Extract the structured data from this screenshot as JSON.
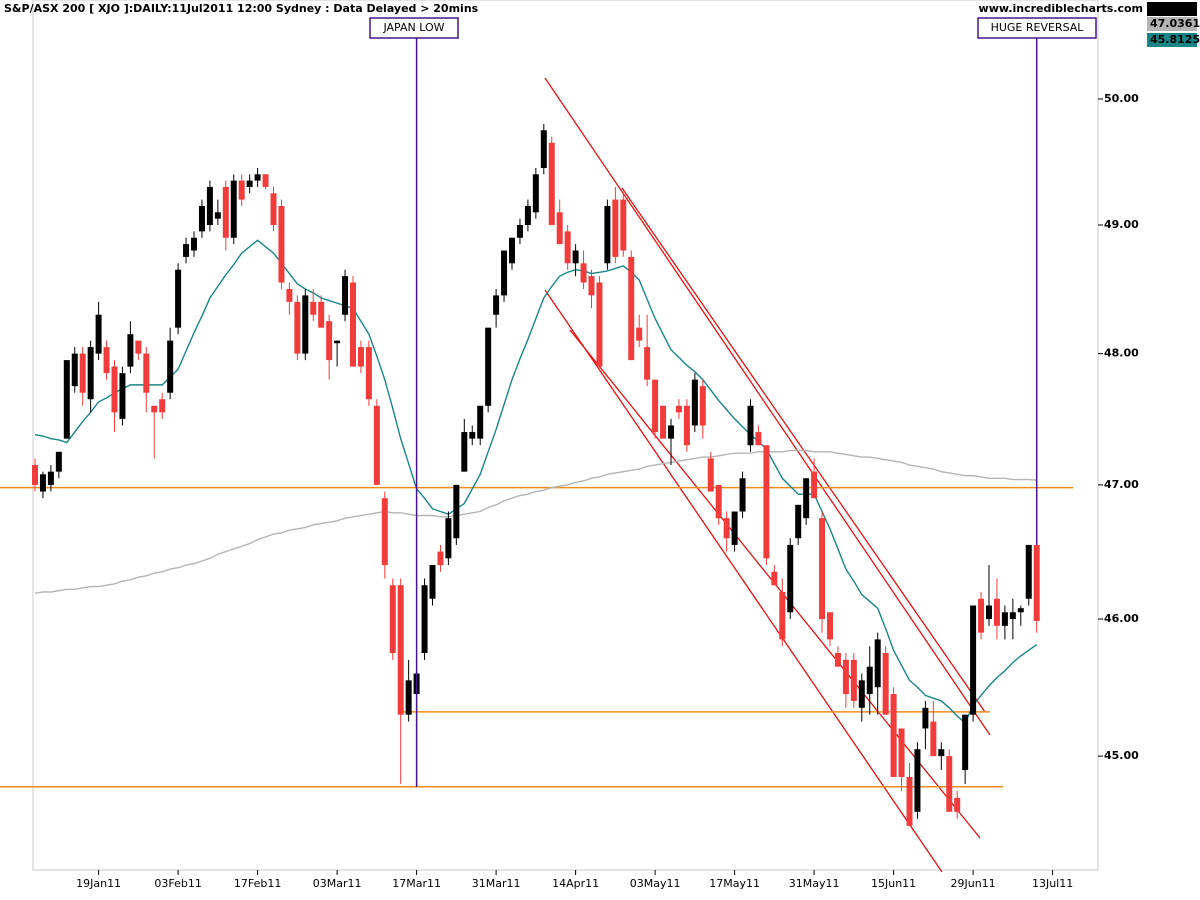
{
  "chart_data": {
    "type": "candlestick",
    "title": "S&P/ASX 200 [ XJO ]:DAILY:11Jul2011 12:00 Sydney : Data Delayed > 20mins",
    "source": "www.incrediblecharts.com",
    "categories": [
      null,
      null,
      null,
      null,
      null,
      null,
      null,
      null,
      "19Jan11",
      null,
      null,
      null,
      null,
      null,
      null,
      null,
      null,
      null,
      "03Feb11",
      null,
      null,
      null,
      null,
      null,
      null,
      null,
      null,
      null,
      "17Feb11",
      null,
      null,
      null,
      null,
      null,
      null,
      null,
      null,
      null,
      "03Mar11",
      null,
      null,
      null,
      null,
      null,
      null,
      null,
      null,
      null,
      "17Mar11",
      null,
      null,
      null,
      null,
      null,
      null,
      null,
      null,
      null,
      "31Mar11",
      null,
      null,
      null,
      null,
      null,
      null,
      null,
      null,
      null,
      "14Apr11",
      null,
      null,
      null,
      null,
      null,
      null,
      null,
      null,
      null,
      "03May11",
      null,
      null,
      null,
      null,
      null,
      null,
      null,
      null,
      null,
      "17May11",
      null,
      null,
      null,
      null,
      null,
      null,
      null,
      null,
      null,
      "31May11",
      null,
      null,
      null,
      null,
      null,
      null,
      null,
      null,
      null,
      "15Jun11",
      null,
      null,
      null,
      null,
      null,
      null,
      null,
      null,
      null,
      "29Jun11",
      null,
      null,
      null,
      null,
      null,
      null,
      null,
      null,
      null,
      "13Jul11"
    ],
    "open": [
      47.15,
      46.95,
      47.0,
      47.1,
      47.35,
      47.75,
      48.0,
      47.65,
      48.0,
      48.05,
      47.9,
      47.5,
      47.9,
      48.1,
      48.0,
      47.6,
      47.65,
      47.7,
      48.2,
      48.75,
      48.8,
      48.95,
      49.0,
      49.05,
      49.3,
      48.9,
      49.35,
      49.3,
      49.35,
      49.4,
      49.25,
      49.15,
      48.5,
      48.4,
      48.0,
      48.4,
      48.4,
      48.25,
      48.08,
      48.3,
      48.55,
      48.05,
      48.05,
      47.6,
      46.9,
      46.25,
      46.25,
      45.3,
      45.45,
      45.75,
      46.15,
      46.5,
      46.45,
      46.6,
      47.1,
      47.35,
      47.35,
      47.6,
      48.3,
      48.45,
      48.7,
      48.9,
      49.0,
      49.1,
      49.45,
      49.65,
      49.1,
      48.95,
      48.7,
      48.7,
      48.6,
      48.55,
      48.7,
      49.2,
      49.2,
      48.75,
      48.2,
      48.05,
      47.8,
      47.6,
      47.35,
      47.6,
      47.6,
      47.45,
      47.75,
      47.2,
      47.0,
      46.75,
      46.55,
      46.8,
      47.3,
      47.4,
      47.3,
      46.35,
      46.2,
      46.05,
      46.6,
      46.75,
      47.1,
      46.75,
      46.05,
      45.75,
      45.7,
      45.7,
      45.35,
      45.45,
      45.5,
      45.75,
      45.45,
      45.2,
      44.85,
      44.6,
      45.2,
      45.25,
      45.0,
      45.0,
      44.7,
      44.9,
      45.3,
      46.15,
      46.0,
      46.15,
      45.95,
      46.0,
      46.05,
      46.15,
      46.55,
      null,
      null
    ],
    "high": [
      47.2,
      47.1,
      47.15,
      47.25,
      47.95,
      48.05,
      48.05,
      48.1,
      48.4,
      48.1,
      47.95,
      47.9,
      48.25,
      48.1,
      48.05,
      47.6,
      47.7,
      48.2,
      48.7,
      48.9,
      48.95,
      49.2,
      49.35,
      49.2,
      49.35,
      49.4,
      49.4,
      49.4,
      49.45,
      49.4,
      49.3,
      49.2,
      48.55,
      48.45,
      48.5,
      48.5,
      48.45,
      48.3,
      48.1,
      48.65,
      48.6,
      48.1,
      48.1,
      47.65,
      46.95,
      46.3,
      46.3,
      45.7,
      45.6,
      46.3,
      46.4,
      46.55,
      46.8,
      47.0,
      47.5,
      47.45,
      47.6,
      48.2,
      48.5,
      48.8,
      48.9,
      49.05,
      49.2,
      49.45,
      49.8,
      49.7,
      49.2,
      49.0,
      48.85,
      48.8,
      48.65,
      48.6,
      49.2,
      49.3,
      49.25,
      48.8,
      48.3,
      48.3,
      47.8,
      47.6,
      47.5,
      47.65,
      47.65,
      47.85,
      47.8,
      47.25,
      47.0,
      46.8,
      46.8,
      47.1,
      47.65,
      47.45,
      47.3,
      46.4,
      46.3,
      46.6,
      46.85,
      47.05,
      47.2,
      46.8,
      46.05,
      45.8,
      45.75,
      45.75,
      45.6,
      45.8,
      45.9,
      45.8,
      45.5,
      45.2,
      44.95,
      45.1,
      45.4,
      45.4,
      45.1,
      45.05,
      44.75,
      45.3,
      46.1,
      46.2,
      46.4,
      46.3,
      46.1,
      46.15,
      46.1,
      46.55,
      46.55,
      null,
      null
    ],
    "low": [
      46.95,
      46.9,
      46.95,
      47.05,
      47.35,
      47.7,
      47.6,
      47.55,
      47.95,
      47.8,
      47.4,
      47.45,
      47.85,
      47.95,
      47.55,
      47.2,
      47.5,
      47.65,
      48.15,
      48.7,
      48.75,
      48.9,
      48.95,
      49.0,
      48.8,
      48.85,
      49.15,
      49.25,
      49.3,
      49.28,
      48.95,
      48.5,
      48.3,
      47.95,
      47.95,
      48.25,
      48.2,
      47.8,
      47.9,
      48.25,
      47.9,
      47.85,
      47.6,
      47.0,
      46.3,
      45.7,
      44.8,
      45.25,
      44.78,
      45.7,
      46.1,
      46.35,
      46.4,
      46.55,
      47.1,
      47.3,
      47.3,
      47.55,
      48.2,
      48.4,
      48.65,
      48.85,
      48.95,
      49.05,
      49.4,
      49.0,
      48.85,
      48.65,
      48.6,
      48.5,
      48.35,
      47.9,
      48.65,
      48.7,
      48.75,
      47.95,
      48.05,
      47.75,
      47.35,
      47.35,
      47.15,
      47.5,
      47.25,
      47.4,
      47.35,
      46.95,
      46.7,
      46.5,
      46.5,
      46.75,
      47.25,
      47.3,
      46.4,
      46.25,
      45.8,
      46.0,
      46.55,
      46.7,
      46.9,
      45.9,
      45.8,
      45.65,
      45.35,
      45.35,
      45.25,
      45.3,
      45.3,
      45.3,
      44.85,
      44.75,
      44.5,
      44.55,
      45.05,
      45.0,
      44.9,
      44.6,
      44.55,
      44.8,
      45.25,
      45.85,
      45.95,
      45.85,
      45.85,
      45.85,
      45.95,
      46.1,
      45.9,
      null,
      null
    ],
    "close": [
      47.0,
      47.08,
      47.1,
      47.25,
      47.95,
      48.0,
      47.7,
      48.05,
      48.3,
      47.85,
      47.55,
      47.85,
      48.15,
      48.0,
      47.7,
      47.55,
      47.55,
      48.1,
      48.65,
      48.85,
      48.9,
      49.15,
      49.3,
      49.1,
      48.9,
      49.35,
      49.2,
      49.35,
      49.4,
      49.3,
      49.0,
      48.55,
      48.4,
      48.0,
      48.45,
      48.3,
      48.2,
      47.95,
      48.1,
      48.6,
      47.9,
      47.9,
      47.65,
      47.0,
      46.4,
      45.75,
      45.3,
      45.55,
      45.6,
      46.25,
      46.4,
      46.4,
      46.75,
      47.0,
      47.4,
      47.4,
      47.6,
      48.2,
      48.45,
      48.8,
      48.9,
      49.0,
      49.15,
      49.4,
      49.75,
      49.0,
      48.85,
      48.7,
      48.8,
      48.55,
      48.45,
      47.9,
      49.15,
      48.75,
      48.8,
      47.95,
      48.1,
      47.8,
      47.4,
      47.35,
      47.45,
      47.55,
      47.3,
      47.8,
      47.45,
      46.95,
      46.75,
      46.6,
      46.8,
      47.05,
      47.6,
      47.3,
      46.45,
      46.25,
      45.85,
      46.55,
      46.85,
      47.05,
      46.9,
      46.0,
      45.85,
      45.65,
      45.45,
      45.4,
      45.55,
      45.65,
      45.85,
      45.3,
      44.85,
      44.85,
      44.5,
      45.05,
      45.35,
      45.0,
      45.05,
      44.6,
      44.6,
      45.3,
      46.1,
      45.9,
      46.1,
      45.95,
      46.05,
      46.05,
      46.08,
      46.55,
      45.986,
      null,
      null
    ],
    "up_color": "#000000",
    "down_color": "#f23c3c",
    "lines": [
      {
        "color": "#1a8585",
        "values": [
          47.38,
          47.37,
          47.35,
          47.34,
          47.32,
          47.4,
          47.48,
          47.55,
          47.63,
          47.66,
          47.7,
          47.73,
          47.76,
          47.76,
          47.76,
          47.76,
          47.76,
          47.82,
          47.88,
          48.02,
          48.16,
          48.29,
          48.43,
          48.52,
          48.61,
          48.69,
          48.78,
          48.83,
          48.88,
          48.83,
          48.78,
          48.7,
          48.62,
          48.54,
          48.5,
          48.47,
          48.43,
          48.41,
          48.39,
          48.37,
          48.35,
          48.25,
          48.15,
          47.98,
          47.8,
          47.58,
          47.35,
          47.16,
          46.97,
          46.9,
          46.82,
          46.8,
          46.78,
          46.82,
          46.86,
          46.97,
          47.08,
          47.25,
          47.42,
          47.61,
          47.8,
          47.96,
          48.11,
          48.27,
          48.43,
          48.52,
          48.6,
          48.63,
          48.65,
          48.64,
          48.62,
          48.63,
          48.64,
          48.66,
          48.68,
          48.63,
          48.57,
          48.42,
          48.27,
          48.15,
          48.03,
          47.97,
          47.91,
          47.86,
          47.8,
          47.72,
          47.64,
          47.57,
          47.5,
          47.44,
          47.38,
          47.33,
          47.27,
          47.16,
          47.05,
          46.99,
          46.93,
          46.93,
          46.93,
          46.8,
          46.67,
          46.52,
          46.37,
          46.28,
          46.18,
          46.13,
          46.08,
          45.93,
          45.77,
          45.66,
          45.55,
          45.5,
          45.44,
          45.42,
          45.4,
          45.35,
          45.29,
          45.24,
          45.37,
          45.44,
          45.51,
          45.57,
          45.62,
          45.68,
          45.73,
          45.77,
          45.8125,
          null,
          null
        ]
      },
      {
        "color": "#b4b4b4",
        "values": [
          46.19,
          46.2,
          46.2,
          46.21,
          46.22,
          46.22,
          46.23,
          46.24,
          46.24,
          46.25,
          46.26,
          46.28,
          46.29,
          46.31,
          46.32,
          46.34,
          46.35,
          46.37,
          46.38,
          46.4,
          46.41,
          46.43,
          46.45,
          46.48,
          46.5,
          46.52,
          46.54,
          46.56,
          46.59,
          46.61,
          46.63,
          46.64,
          46.66,
          46.67,
          46.68,
          46.7,
          46.71,
          46.72,
          46.73,
          46.75,
          46.76,
          46.77,
          46.78,
          46.79,
          46.8,
          46.79,
          46.79,
          46.78,
          46.77,
          46.77,
          46.77,
          46.76,
          46.76,
          46.77,
          46.78,
          46.79,
          46.8,
          46.83,
          46.85,
          46.88,
          46.9,
          46.92,
          46.93,
          46.95,
          46.96,
          46.98,
          46.99,
          47.0,
          47.02,
          47.03,
          47.05,
          47.06,
          47.08,
          47.09,
          47.1,
          47.11,
          47.12,
          47.14,
          47.15,
          47.16,
          47.17,
          47.18,
          47.19,
          47.2,
          47.21,
          47.21,
          47.22,
          47.23,
          47.24,
          47.24,
          47.24,
          47.25,
          47.25,
          47.25,
          47.25,
          47.26,
          47.26,
          47.26,
          47.25,
          47.25,
          47.25,
          47.24,
          47.23,
          47.22,
          47.21,
          47.21,
          47.2,
          47.19,
          47.18,
          47.17,
          47.15,
          47.14,
          47.13,
          47.12,
          47.1,
          47.09,
          47.08,
          47.07,
          47.07,
          47.06,
          47.05,
          47.05,
          47.05,
          47.04,
          47.04,
          47.04,
          47.0361,
          null,
          null
        ]
      }
    ],
    "levels": [
      46.98,
      45.32,
      44.78
    ],
    "level_color": "#f08c1e",
    "annotations": [
      {
        "text": "JAPAN LOW"
      },
      {
        "text": "HUGE REVERSAL"
      }
    ],
    "annotation_color": "#46148c",
    "log_scale": true,
    "ylim": [
      44.2,
      50.8
    ],
    "yticks": [
      {
        "value": 45,
        "label": "45.00"
      },
      {
        "value": 46,
        "label": "46.00"
      },
      {
        "value": 47,
        "label": "47.00"
      },
      {
        "value": 48,
        "label": "48.00"
      },
      {
        "value": 49,
        "label": "49.00"
      },
      {
        "value": 50,
        "label": "50.00"
      }
    ]
  }
}
